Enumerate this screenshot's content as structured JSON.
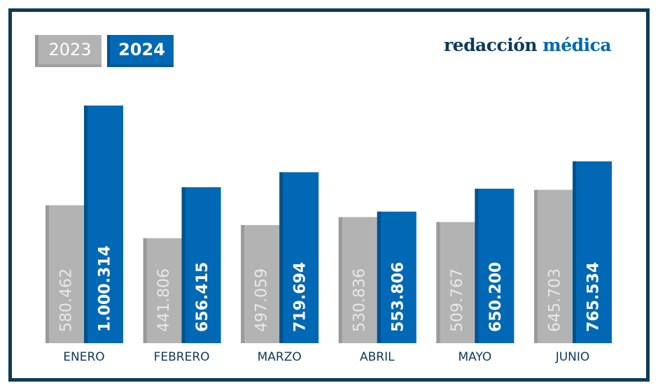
{
  "logo": {
    "part1": "redacción",
    "part2": "médica"
  },
  "colors": {
    "2023": "#b3b3b3",
    "2024": "#0068b4",
    "frame": "#0d3a5c",
    "label": "#0d3a5c"
  },
  "chart_data": {
    "type": "bar",
    "categories": [
      "ENERO",
      "FEBRERO",
      "MARZO",
      "ABRIL",
      "MAYO",
      "JUNIO"
    ],
    "series": [
      {
        "name": "2023",
        "values": [
          580462,
          441806,
          497059,
          530836,
          509767,
          645703
        ],
        "labels": [
          "580.462",
          "441.806",
          "497.059",
          "530.836",
          "509.767",
          "645.703"
        ]
      },
      {
        "name": "2024",
        "values": [
          1000314,
          656415,
          719694,
          553806,
          650200,
          765534
        ],
        "labels": [
          "1.000.314",
          "656.415",
          "719.694",
          "553.806",
          "650.200",
          "765.534"
        ]
      }
    ],
    "legend": "top-left",
    "ylim": [
      0,
      1000314
    ],
    "grid": false
  }
}
